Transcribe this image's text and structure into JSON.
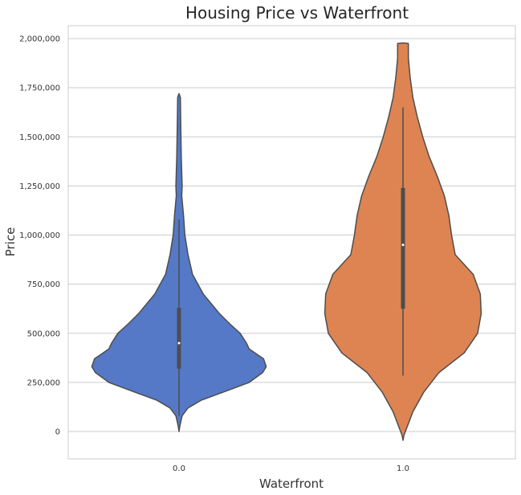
{
  "chart_data": {
    "type": "violin",
    "title": "Housing Price vs Waterfront",
    "xlabel": "Waterfront",
    "ylabel": "Price",
    "ylim": [
      -140000,
      2110000
    ],
    "yticks": [
      0,
      250000,
      500000,
      750000,
      1000000,
      1250000,
      1500000,
      1750000,
      2000000
    ],
    "ytick_labels": [
      "0",
      "250,000",
      "500,000",
      "750,000",
      "1,000,000",
      "1,250,000",
      "1,500,000",
      "1,750,000",
      "2,000,000"
    ],
    "categories": [
      "0.0",
      "1.0"
    ],
    "grid": "horizontal",
    "series": [
      {
        "category": "0.0",
        "color": "#5579c6",
        "whisker_low": 80000,
        "q1": 320000,
        "median": 450000,
        "q3": 630000,
        "whisker_high": 1080000,
        "profile": [
          [
            0,
            0.0
          ],
          [
            30000,
            0.01
          ],
          [
            80000,
            0.035
          ],
          [
            120000,
            0.1
          ],
          [
            160000,
            0.25
          ],
          [
            200000,
            0.49
          ],
          [
            250000,
            0.78
          ],
          [
            300000,
            0.93
          ],
          [
            330000,
            0.97
          ],
          [
            370000,
            0.94
          ],
          [
            420000,
            0.78
          ],
          [
            450000,
            0.75
          ],
          [
            500000,
            0.68
          ],
          [
            550000,
            0.56
          ],
          [
            600000,
            0.45
          ],
          [
            650000,
            0.36
          ],
          [
            700000,
            0.27
          ],
          [
            750000,
            0.21
          ],
          [
            800000,
            0.15
          ],
          [
            900000,
            0.1
          ],
          [
            1000000,
            0.065
          ],
          [
            1100000,
            0.05
          ],
          [
            1200000,
            0.03
          ],
          [
            1250000,
            0.035
          ],
          [
            1400000,
            0.025
          ],
          [
            1550000,
            0.02
          ],
          [
            1700000,
            0.015
          ],
          [
            1720000,
            0.0
          ]
        ]
      },
      {
        "category": "1.0",
        "color": "#dd8452",
        "whisker_low": 285000,
        "q1": 625000,
        "median": 950000,
        "q3": 1240000,
        "whisker_high": 1650000,
        "profile": [
          [
            -45000,
            0.0
          ],
          [
            -20000,
            0.01
          ],
          [
            100000,
            0.11
          ],
          [
            200000,
            0.23
          ],
          [
            300000,
            0.4
          ],
          [
            400000,
            0.68
          ],
          [
            500000,
            0.83
          ],
          [
            600000,
            0.87
          ],
          [
            700000,
            0.86
          ],
          [
            800000,
            0.78
          ],
          [
            900000,
            0.58
          ],
          [
            1000000,
            0.54
          ],
          [
            1100000,
            0.51
          ],
          [
            1200000,
            0.46
          ],
          [
            1300000,
            0.38
          ],
          [
            1400000,
            0.29
          ],
          [
            1500000,
            0.22
          ],
          [
            1600000,
            0.16
          ],
          [
            1700000,
            0.11
          ],
          [
            1800000,
            0.08
          ],
          [
            1900000,
            0.06
          ],
          [
            1975000,
            0.06
          ],
          [
            1978000,
            0.0
          ]
        ]
      }
    ]
  }
}
